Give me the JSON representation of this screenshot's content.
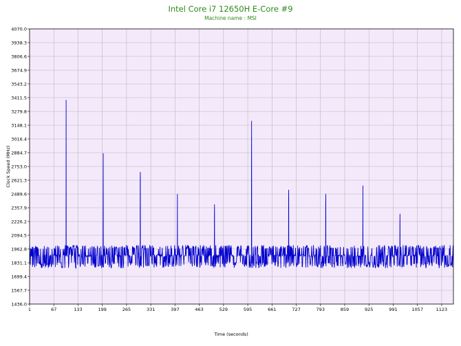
{
  "chart_data": {
    "type": "line",
    "title": "Intel Core i7 12650H E-Core #9",
    "subtitle": "Machine name : MSI",
    "xlabel": "Time (seconds)",
    "ylabel": "Clock Speed (MHz)",
    "xlim": [
      1,
      1155
    ],
    "ylim": [
      1436.0,
      4070.0
    ],
    "x_ticks": [
      "1",
      "67",
      "133",
      "199",
      "265",
      "331",
      "397",
      "463",
      "529",
      "595",
      "661",
      "727",
      "793",
      "859",
      "925",
      "991",
      "1057",
      "1123"
    ],
    "y_ticks": [
      "4070.0",
      "3938.3",
      "3806.6",
      "3674.9",
      "3543.2",
      "3411.5",
      "3279.8",
      "3148.1",
      "3016.4",
      "2884.7",
      "2753.0",
      "2621.3",
      "2489.6",
      "2357.9",
      "2226.2",
      "2094.5",
      "1962.8",
      "1831.1",
      "1699.4",
      "1567.7",
      "1436.0"
    ],
    "grid": true,
    "background_color": "#f4e9fb",
    "grid_color": "#b8b8b8",
    "line_color": "#0000cd",
    "title_color": "#2e8b1a",
    "baseline_mhz": 1900,
    "noise_range_mhz": [
      1780,
      2000
    ],
    "noise_seed": 12650,
    "spikes": [
      {
        "x": 100,
        "peak": 3390,
        "pre": 2000
      },
      {
        "x": 201,
        "peak": 2880,
        "pre": 2400
      },
      {
        "x": 302,
        "peak": 2700,
        "pre": 2620
      },
      {
        "x": 403,
        "peak": 2490,
        "pre": 2000
      },
      {
        "x": 504,
        "peak": 2390,
        "pre": 2300
      },
      {
        "x": 605,
        "peak": 3190,
        "pre": 2750
      },
      {
        "x": 706,
        "peak": 2530,
        "pre": 2450
      },
      {
        "x": 807,
        "peak": 2490,
        "pre": 2400
      },
      {
        "x": 908,
        "peak": 2570,
        "pre": 2000
      },
      {
        "x": 1009,
        "peak": 2300,
        "pre": 2200
      }
    ]
  }
}
